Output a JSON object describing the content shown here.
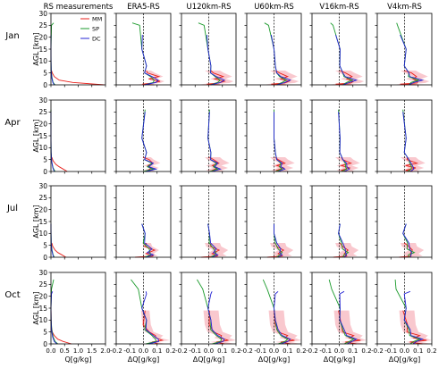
{
  "chart_data": {
    "type": "line",
    "column_titles": [
      "RS measurements",
      "ERA5-RS",
      "U120km-RS",
      "U60km-RS",
      "V16km-RS",
      "V4km-RS"
    ],
    "row_labels": [
      "Jan",
      "Apr",
      "Jul",
      "Oct"
    ],
    "ylabel": "AGL [km]",
    "xlabels": [
      "Q[g/kg]",
      "ΔQ[g/kg]",
      "ΔQ[g/kg]",
      "ΔQ[g/kg]",
      "ΔQ[g/kg]",
      "ΔQ[g/kg]"
    ],
    "xlim_measurements": [
      0,
      2.0
    ],
    "xticks_measurements": [
      "0.0",
      "0.5",
      "1.0",
      "1.5",
      "2.0"
    ],
    "xlim_diff": [
      -0.2,
      0.2
    ],
    "xticks_diff": [
      "-0.2",
      "-0.1",
      "0.0",
      "0.1",
      "0.2"
    ],
    "ylim": [
      0,
      30
    ],
    "yticks": [
      "0",
      "5",
      "10",
      "15",
      "20",
      "25",
      "30"
    ],
    "legend": {
      "position": "top-right",
      "entries": [
        "MM",
        "SP",
        "DC"
      ]
    },
    "colors": {
      "MM": "#e8211c",
      "SP": "#1a9a2b",
      "DC": "#2323d4",
      "spread": "#f7b5bd",
      "zero_line": "#000000"
    },
    "stations": [
      {
        "name": "MM",
        "top_km": {
          "Jan": 6,
          "Apr": 6,
          "Jul": 6,
          "Oct": 14
        }
      },
      {
        "name": "SP",
        "top_km": {
          "Jan": 26,
          "Apr": 26,
          "Jul": 14,
          "Oct": 27
        }
      },
      {
        "name": "DC",
        "top_km": {
          "Jan": 21,
          "Apr": 25,
          "Jul": 14,
          "Oct": 22
        }
      }
    ],
    "q_profiles": {
      "Jan": {
        "MM": [
          [
            1.95,
            0
          ],
          [
            0.8,
            1
          ],
          [
            0.3,
            2
          ],
          [
            0.12,
            3.5
          ],
          [
            0.05,
            5
          ],
          [
            0.02,
            6
          ]
        ],
        "SP": [
          [
            0.15,
            0
          ],
          [
            0.08,
            1
          ],
          [
            0.04,
            3
          ],
          [
            0.01,
            6
          ],
          [
            0.002,
            10
          ],
          [
            0.001,
            15
          ],
          [
            0.02,
            25
          ],
          [
            0.1,
            26
          ]
        ],
        "DC": [
          [
            0.12,
            0
          ],
          [
            0.07,
            1
          ],
          [
            0.03,
            3
          ],
          [
            0.01,
            6
          ],
          [
            0.002,
            10
          ],
          [
            0.001,
            15
          ],
          [
            0.002,
            21
          ]
        ]
      },
      "Apr": {
        "MM": [
          [
            0.6,
            0
          ],
          [
            0.45,
            1
          ],
          [
            0.3,
            2
          ],
          [
            0.18,
            3
          ],
          [
            0.08,
            4.5
          ],
          [
            0.03,
            6
          ]
        ],
        "SP": [
          [
            0.15,
            0
          ],
          [
            0.08,
            1.5
          ],
          [
            0.03,
            4
          ],
          [
            0.005,
            8
          ],
          [
            0.001,
            15
          ],
          [
            0.001,
            26
          ]
        ],
        "DC": [
          [
            0.12,
            0
          ],
          [
            0.07,
            1.5
          ],
          [
            0.03,
            4
          ],
          [
            0.005,
            8
          ],
          [
            0.001,
            15
          ],
          [
            0.001,
            25
          ]
        ]
      },
      "Jul": {
        "MM": [
          [
            0.55,
            0
          ],
          [
            0.4,
            1
          ],
          [
            0.25,
            2
          ],
          [
            0.15,
            3
          ],
          [
            0.07,
            4.5
          ],
          [
            0.03,
            6
          ]
        ],
        "SP": [
          [
            0.12,
            0
          ],
          [
            0.08,
            1
          ],
          [
            0.04,
            3
          ],
          [
            0.01,
            6
          ],
          [
            0.002,
            10
          ],
          [
            0.001,
            14
          ]
        ],
        "DC": [
          [
            0.1,
            0
          ],
          [
            0.07,
            1
          ],
          [
            0.03,
            3
          ],
          [
            0.01,
            6
          ],
          [
            0.002,
            10
          ],
          [
            0.001,
            14
          ]
        ]
      },
      "Oct": {
        "MM": [
          [
            0.75,
            0
          ],
          [
            0.45,
            1
          ],
          [
            0.25,
            2
          ],
          [
            0.12,
            3.5
          ],
          [
            0.05,
            5
          ],
          [
            0.02,
            7
          ],
          [
            0.005,
            10
          ],
          [
            0.002,
            14
          ]
        ],
        "SP": [
          [
            0.25,
            0
          ],
          [
            0.15,
            1
          ],
          [
            0.08,
            3
          ],
          [
            0.03,
            6
          ],
          [
            0.005,
            10
          ],
          [
            0.001,
            15
          ],
          [
            0.02,
            23
          ],
          [
            0.1,
            27
          ]
        ],
        "DC": [
          [
            0.22,
            0
          ],
          [
            0.12,
            1
          ],
          [
            0.06,
            3
          ],
          [
            0.02,
            6
          ],
          [
            0.005,
            10
          ],
          [
            0.001,
            15
          ],
          [
            0.02,
            21
          ],
          [
            0.06,
            22
          ]
        ]
      }
    },
    "dq_profiles_typical": {
      "Jan": {
        "MM": [
          [
            0.09,
            0
          ],
          [
            -0.02,
            0.3
          ],
          [
            0.08,
            0.8
          ],
          [
            0.11,
            1.5
          ],
          [
            0.05,
            2.5
          ],
          [
            0.1,
            3.5
          ],
          [
            0.04,
            5
          ],
          [
            0.01,
            6
          ]
        ],
        "SP": [
          [
            0.02,
            0
          ],
          [
            0.06,
            1
          ],
          [
            0.09,
            2
          ],
          [
            0.04,
            3.5
          ],
          [
            0.02,
            5
          ],
          [
            0.01,
            8
          ],
          [
            0,
            15
          ],
          [
            -0.04,
            25
          ],
          [
            -0.07,
            26
          ]
        ],
        "DC": [
          [
            0.02,
            0
          ],
          [
            0.08,
            1
          ],
          [
            0.12,
            2
          ],
          [
            0.05,
            3.5
          ],
          [
            0.02,
            5
          ],
          [
            0.01,
            8
          ],
          [
            0,
            15
          ],
          [
            -0.02,
            21
          ]
        ]
      },
      "Apr": {
        "MM": [
          [
            0.05,
            0
          ],
          [
            0.02,
            0.5
          ],
          [
            0.07,
            1.5
          ],
          [
            0.02,
            2.5
          ],
          [
            0.08,
            3.5
          ],
          [
            0.03,
            5
          ],
          [
            0.01,
            6
          ]
        ],
        "SP": [
          [
            0.01,
            0
          ],
          [
            0.06,
            1
          ],
          [
            0.04,
            2
          ],
          [
            0.05,
            3.5
          ],
          [
            0.02,
            5
          ],
          [
            0.01,
            8
          ],
          [
            0,
            14
          ],
          [
            0,
            26
          ]
        ],
        "DC": [
          [
            0.03,
            0
          ],
          [
            0.08,
            1
          ],
          [
            0.05,
            2
          ],
          [
            0.06,
            3.5
          ],
          [
            0.02,
            5
          ],
          [
            0.01,
            8
          ],
          [
            0,
            14
          ],
          [
            0,
            25
          ]
        ]
      },
      "Jul": {
        "MM": [
          [
            -0.05,
            0
          ],
          [
            0.06,
            0.5
          ],
          [
            0.03,
            1.5
          ],
          [
            0.07,
            3
          ],
          [
            0.02,
            4.5
          ],
          [
            0.01,
            6
          ]
        ],
        "SP": [
          [
            0.02,
            0
          ],
          [
            0.04,
            1
          ],
          [
            0.06,
            2
          ],
          [
            0.03,
            3.5
          ],
          [
            0.01,
            6
          ],
          [
            0,
            10
          ],
          [
            0,
            14
          ]
        ],
        "DC": [
          [
            0.03,
            0
          ],
          [
            0.06,
            1
          ],
          [
            0.04,
            2
          ],
          [
            0.05,
            3.5
          ],
          [
            0.02,
            6
          ],
          [
            0,
            10
          ],
          [
            0,
            14
          ]
        ]
      },
      "Oct": {
        "MM": [
          [
            0.12,
            0
          ],
          [
            0.05,
            0.8
          ],
          [
            0.15,
            1.5
          ],
          [
            0.08,
            2.5
          ],
          [
            0.1,
            3.5
          ],
          [
            0.03,
            5
          ],
          [
            0.01,
            8
          ],
          [
            0,
            14
          ]
        ],
        "SP": [
          [
            0.03,
            0
          ],
          [
            0.08,
            1
          ],
          [
            0.1,
            2
          ],
          [
            0.05,
            3.5
          ],
          [
            0.02,
            6
          ],
          [
            0.01,
            10
          ],
          [
            0,
            15
          ],
          [
            -0.05,
            23
          ],
          [
            -0.08,
            27
          ]
        ],
        "DC": [
          [
            0.05,
            0
          ],
          [
            0.1,
            1
          ],
          [
            0.12,
            2
          ],
          [
            0.06,
            3.5
          ],
          [
            0.03,
            6
          ],
          [
            0.01,
            10
          ],
          [
            0,
            15
          ],
          [
            0.01,
            21
          ],
          [
            0.03,
            22
          ]
        ]
      }
    }
  }
}
